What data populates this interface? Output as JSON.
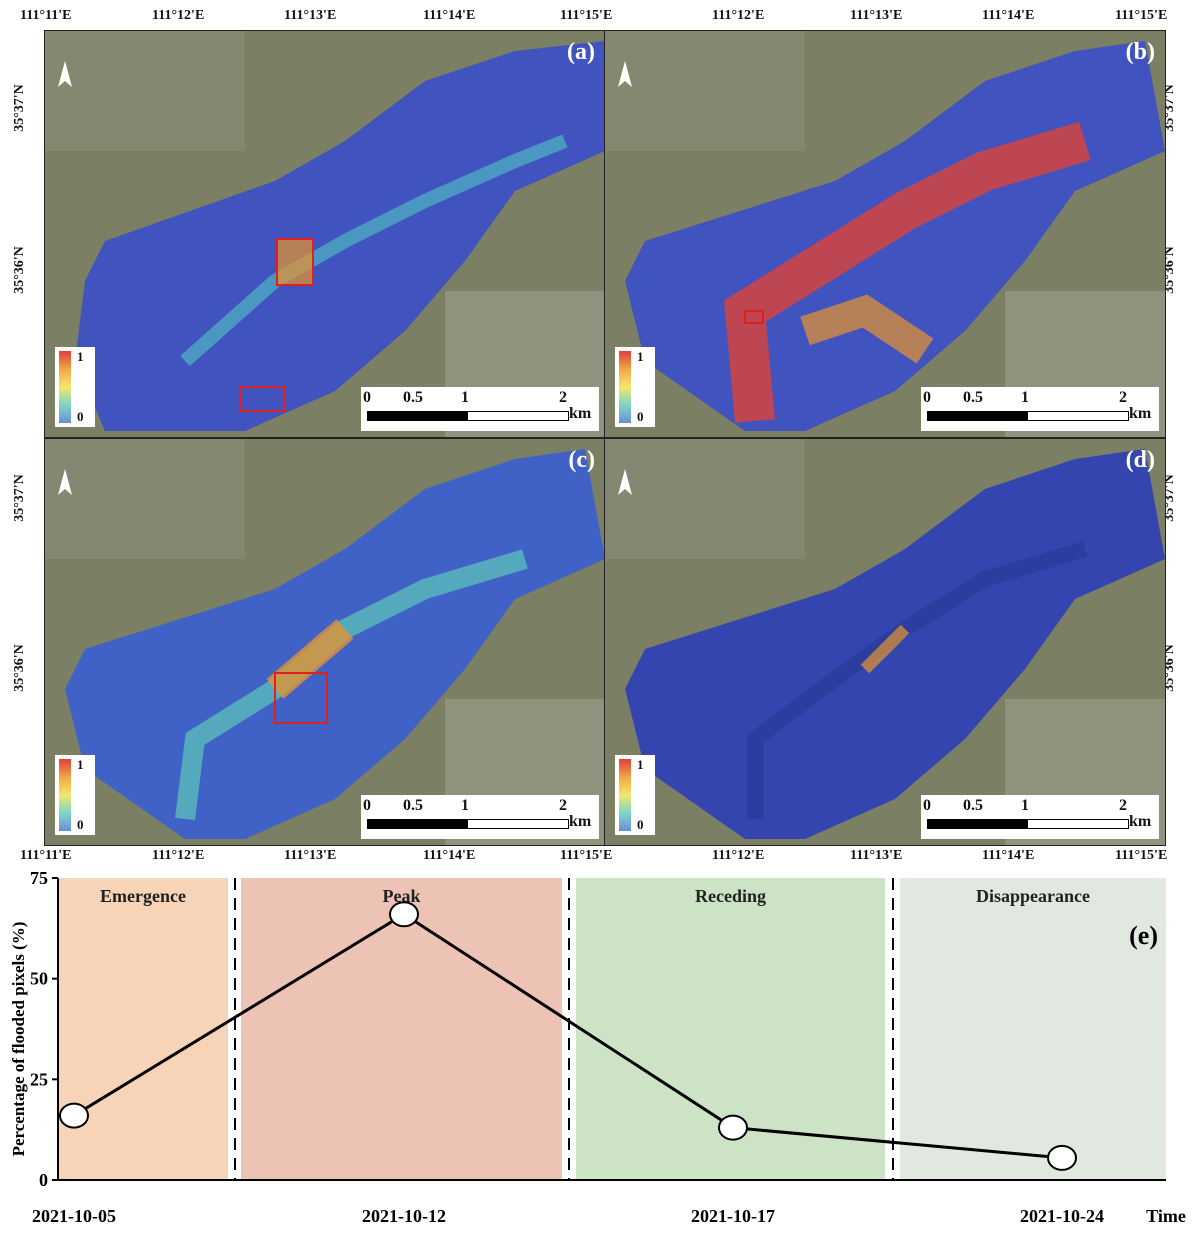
{
  "map_axes": {
    "top_lon_ticks_left": [
      "111°11'E",
      "111°12'E",
      "111°13'E",
      "111°14'E",
      "111°15'E"
    ],
    "top_lon_ticks_right": [
      "111°12'E",
      "111°13'E",
      "111°14'E",
      "111°15'E"
    ],
    "bottom_lon_ticks_left": [
      "111°11'E",
      "111°12'E",
      "111°13'E",
      "111°14'E",
      "111°15'E"
    ],
    "bottom_lon_ticks_right": [
      "111°12'E",
      "111°13'E",
      "111°14'E",
      "111°15'E"
    ],
    "lat_ticks": [
      "35°37'N",
      "35°36'N"
    ]
  },
  "panels": [
    {
      "label": "(a)",
      "colorbar_max": "1",
      "colorbar_min": "0"
    },
    {
      "label": "(b)",
      "colorbar_max": "1",
      "colorbar_min": "0"
    },
    {
      "label": "(c)",
      "colorbar_max": "1",
      "colorbar_min": "0"
    },
    {
      "label": "(d)",
      "colorbar_max": "1",
      "colorbar_min": "0"
    }
  ],
  "scale_bar": {
    "ticks": [
      "0",
      "0.5",
      "1",
      "2"
    ],
    "unit": "km"
  },
  "colors": {
    "stage_emergence": "#f7d4b7",
    "stage_peak": "#ecc3b4",
    "stage_receding": "#cce3c6",
    "stage_disappearance": "#e0e8df",
    "flood_low": "#3a4fc8",
    "flood_high": "#e8402e"
  },
  "chart_data": {
    "type": "line",
    "panel_label": "(e)",
    "ylabel": "Percentage of flooded pixels (%)",
    "xlabel": "Time",
    "ylim": [
      0,
      75
    ],
    "yticks": [
      0,
      25,
      50,
      75
    ],
    "categories": [
      "2021-10-05",
      "2021-10-12",
      "2021-10-17",
      "2021-10-24"
    ],
    "values": [
      16,
      66,
      13,
      5.5
    ],
    "stages": [
      "Emergence",
      "Peak",
      "Receding",
      "Disappearance"
    ]
  }
}
